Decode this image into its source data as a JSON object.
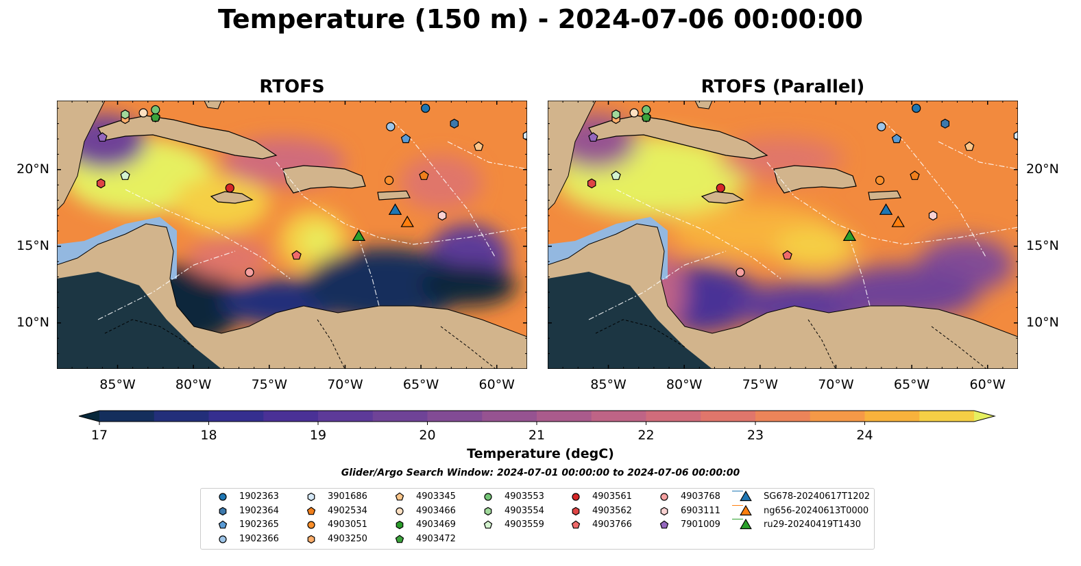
{
  "title": "Temperature (150 m) - 2024-07-06 00:00:00",
  "panels": [
    {
      "title": "RTOFS"
    },
    {
      "title": "RTOFS (Parallel)"
    }
  ],
  "axes": {
    "lon_ticks": [
      "85°W",
      "80°W",
      "75°W",
      "70°W",
      "65°W",
      "60°W"
    ],
    "lon_values": [
      -85,
      -80,
      -75,
      -70,
      -65,
      -60
    ],
    "lat_ticks": [
      "10°N",
      "15°N",
      "20°N"
    ],
    "lat_values": [
      10,
      15,
      20
    ],
    "lon_range": [
      -89,
      -58
    ],
    "lat_range": [
      7,
      24.5
    ]
  },
  "colorbar": {
    "label": "Temperature (degC)",
    "ticks": [
      "17",
      "18",
      "19",
      "20",
      "21",
      "22",
      "23",
      "24"
    ],
    "tick_values": [
      17,
      18,
      19,
      20,
      21,
      22,
      23,
      24
    ],
    "range": [
      17,
      24.5
    ],
    "step": 0.5,
    "colors": [
      "#08283b",
      "#142e5c",
      "#232f7a",
      "#352f8f",
      "#4a3196",
      "#5d3a99",
      "#6f4397",
      "#824b95",
      "#965391",
      "#aa5b8c",
      "#bf6486",
      "#d06c7b",
      "#e0766b",
      "#ec8459",
      "#f59947",
      "#f8b23c",
      "#f5cf45",
      "#e6f060"
    ]
  },
  "search_window": "Glider/Argo Search Window: 2024-07-01 00:00:00 to 2024-07-06 00:00:00",
  "legend": [
    {
      "label": "1902363",
      "marker": "circle",
      "color": "#1f77b4"
    },
    {
      "label": "1902364",
      "marker": "hexagon",
      "color": "#3d79ac"
    },
    {
      "label": "1902365",
      "marker": "pentagon",
      "color": "#5a9bd5"
    },
    {
      "label": "1902366",
      "marker": "circle",
      "color": "#9ec5e8"
    },
    {
      "label": "3901686",
      "marker": "hexagon",
      "color": "#d6e9f8"
    },
    {
      "label": "4902534",
      "marker": "pentagon",
      "color": "#f07f1c"
    },
    {
      "label": "4903051",
      "marker": "circle",
      "color": "#fb8f2b"
    },
    {
      "label": "4903250",
      "marker": "hexagon",
      "color": "#fdae6b"
    },
    {
      "label": "4903345",
      "marker": "pentagon",
      "color": "#fdc68a"
    },
    {
      "label": "4903466",
      "marker": "circle",
      "color": "#fde0c2"
    },
    {
      "label": "4903469",
      "marker": "hexagon",
      "color": "#2a9c2a"
    },
    {
      "label": "4903472",
      "marker": "pentagon",
      "color": "#3ca33c"
    },
    {
      "label": "4903553",
      "marker": "circle",
      "color": "#74c476"
    },
    {
      "label": "4903554",
      "marker": "hexagon",
      "color": "#a1d99b"
    },
    {
      "label": "4903559",
      "marker": "pentagon",
      "color": "#d4f3cf"
    },
    {
      "label": "4903561",
      "marker": "circle",
      "color": "#d62728"
    },
    {
      "label": "4903562",
      "marker": "hexagon",
      "color": "#df4545"
    },
    {
      "label": "4903766",
      "marker": "pentagon",
      "color": "#ef6a6a"
    },
    {
      "label": "4903768",
      "marker": "circle",
      "color": "#f5a0a0"
    },
    {
      "label": "6903111",
      "marker": "hexagon",
      "color": "#fad2d2"
    },
    {
      "label": "7901009",
      "marker": "pentagon",
      "color": "#9467bd"
    },
    {
      "label": "SG678-20240617T1202",
      "marker": "triangle-line",
      "color": "#1f77b4"
    },
    {
      "label": "ng656-20240613T0000",
      "marker": "triangle-line",
      "color": "#ff7f0e"
    },
    {
      "label": "ru29-20240419T1430",
      "marker": "triangle-line",
      "color": "#2ca02c"
    }
  ],
  "floats": [
    {
      "id": "1902363",
      "lon": -64.7,
      "lat": 24.0
    },
    {
      "id": "1902364",
      "lon": -62.8,
      "lat": 23.0
    },
    {
      "id": "1902365",
      "lon": -66.0,
      "lat": 22.0
    },
    {
      "id": "1902366",
      "lon": -67.0,
      "lat": 22.8
    },
    {
      "id": "3901686",
      "lon": -58.0,
      "lat": 22.2
    },
    {
      "id": "4902534",
      "lon": -64.8,
      "lat": 19.6
    },
    {
      "id": "4903051",
      "lon": -67.1,
      "lat": 19.3
    },
    {
      "id": "4903250",
      "lon": -84.5,
      "lat": 23.3
    },
    {
      "id": "4903345",
      "lon": -61.2,
      "lat": 21.5
    },
    {
      "id": "4903466",
      "lon": -83.3,
      "lat": 23.7
    },
    {
      "id": "4903469",
      "lon": -82.5,
      "lat": 23.4
    },
    {
      "id": "4903472",
      "lon": -82.5,
      "lat": 23.4
    },
    {
      "id": "4903553",
      "lon": -82.5,
      "lat": 23.9
    },
    {
      "id": "4903554",
      "lon": -84.5,
      "lat": 23.6
    },
    {
      "id": "4903559",
      "lon": -84.5,
      "lat": 19.6
    },
    {
      "id": "4903561",
      "lon": -77.6,
      "lat": 18.8
    },
    {
      "id": "4903562",
      "lon": -86.1,
      "lat": 19.1
    },
    {
      "id": "4903766",
      "lon": -73.2,
      "lat": 14.4
    },
    {
      "id": "4903768",
      "lon": -76.3,
      "lat": 13.3
    },
    {
      "id": "6903111",
      "lon": -63.6,
      "lat": 17.0
    },
    {
      "id": "7901009",
      "lon": -86.0,
      "lat": 22.1
    }
  ],
  "gliders": [
    {
      "id": "SG678-20240617T1202",
      "lon": -66.7,
      "lat": 17.3
    },
    {
      "id": "ng656-20240613T0000",
      "lon": -65.9,
      "lat": 16.5
    },
    {
      "id": "ru29-20240419T1430",
      "lon": -69.1,
      "lat": 15.6
    }
  ]
}
